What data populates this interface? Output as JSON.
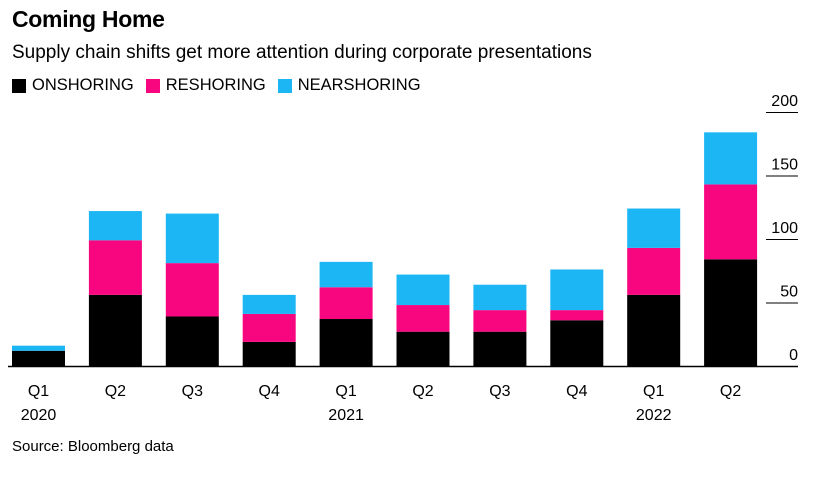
{
  "title": "Coming Home",
  "subtitle": "Supply chain shifts get more attention during corporate presentations",
  "source": "Source: Bloomberg data",
  "colors": {
    "onshoring": "#000000",
    "reshoring": "#f7067f",
    "nearshoring": "#1db6f4",
    "axis": "#000000"
  },
  "chart_data": {
    "type": "bar",
    "stacked": true,
    "categories": [
      "Q1",
      "Q2",
      "Q3",
      "Q4",
      "Q1",
      "Q2",
      "Q3",
      "Q4",
      "Q1",
      "Q2"
    ],
    "year_labels": [
      "2020",
      "",
      "",
      "",
      "2021",
      "",
      "",
      "",
      "2022",
      ""
    ],
    "series": [
      {
        "name": "ONSHORING",
        "values": [
          12,
          56,
          39,
          19,
          37,
          27,
          27,
          36,
          56,
          84
        ]
      },
      {
        "name": "RESHORING",
        "values": [
          0,
          43,
          42,
          22,
          25,
          21,
          17,
          8,
          37,
          59
        ]
      },
      {
        "name": "NEARSHORING",
        "values": [
          4,
          23,
          39,
          15,
          20,
          24,
          20,
          32,
          31,
          41
        ]
      }
    ],
    "yticks": [
      0,
      50,
      100,
      150,
      200
    ],
    "ylim": [
      0,
      200
    ],
    "legend_position": "top-left",
    "grid": false
  }
}
